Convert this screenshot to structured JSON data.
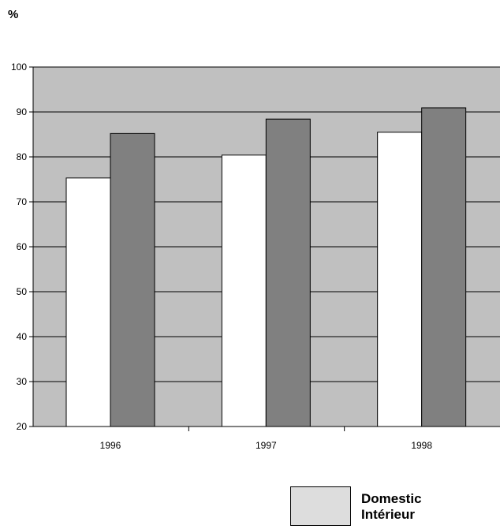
{
  "unit": "%",
  "chart_data": {
    "type": "bar",
    "categories": [
      "1996",
      "1997",
      "1998"
    ],
    "series": [
      {
        "values": [
          75.3,
          80.4,
          85.5
        ],
        "color": "#ffffff"
      },
      {
        "values": [
          85.2,
          88.4,
          90.9
        ],
        "color": "#808080"
      }
    ],
    "ylim": [
      20,
      100
    ],
    "yticks": [
      20,
      30,
      40,
      50,
      60,
      70,
      80,
      90,
      100
    ],
    "grid": true,
    "plot_background": "#c0c0c0"
  },
  "legend": {
    "label_en": "Domestic",
    "label_fr": "Intérieur",
    "color": "#dddddd"
  }
}
